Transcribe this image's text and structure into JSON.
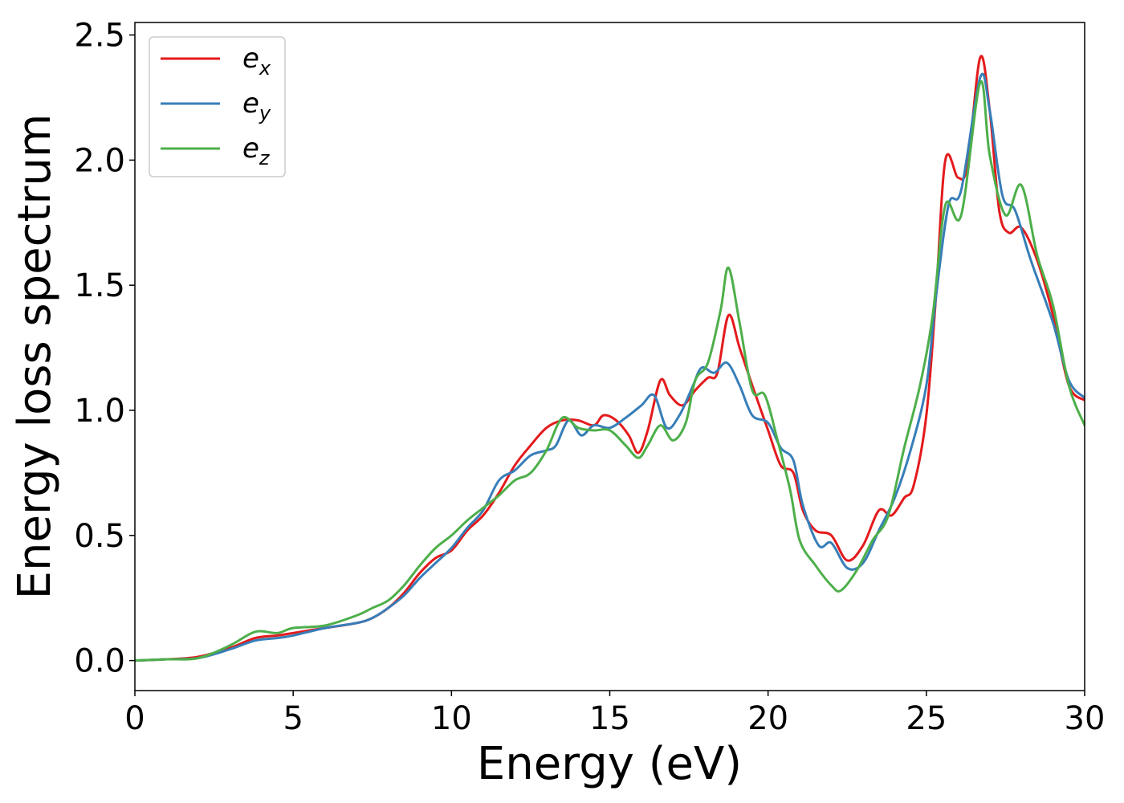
{
  "chart_data": {
    "type": "line",
    "xlabel": "Energy (eV)",
    "ylabel": "Energy loss spectrum",
    "xlim": [
      0,
      30
    ],
    "ylim": [
      -0.12,
      2.55
    ],
    "xticks": [
      0,
      5,
      10,
      15,
      20,
      25,
      30
    ],
    "xtick_labels": [
      "0",
      "5",
      "10",
      "15",
      "20",
      "25",
      "30"
    ],
    "yticks": [
      0.0,
      0.5,
      1.0,
      1.5,
      2.0,
      2.5
    ],
    "ytick_labels": [
      "0.0",
      "0.5",
      "1.0",
      "1.5",
      "2.0",
      "2.5"
    ],
    "grid": false,
    "legend_position": "top-left",
    "series": [
      {
        "name": "e",
        "subscript": "x",
        "color": "#e41a1c",
        "points": [
          [
            0,
            0
          ],
          [
            1,
            0.005
          ],
          [
            2,
            0.015
          ],
          [
            3,
            0.05
          ],
          [
            3.8,
            0.09
          ],
          [
            4.5,
            0.1
          ],
          [
            5,
            0.11
          ],
          [
            6,
            0.13
          ],
          [
            7,
            0.15
          ],
          [
            7.5,
            0.17
          ],
          [
            8,
            0.21
          ],
          [
            8.5,
            0.27
          ],
          [
            9,
            0.35
          ],
          [
            9.5,
            0.41
          ],
          [
            10,
            0.44
          ],
          [
            10.5,
            0.52
          ],
          [
            11,
            0.58
          ],
          [
            11.5,
            0.67
          ],
          [
            12,
            0.78
          ],
          [
            12.5,
            0.86
          ],
          [
            13,
            0.93
          ],
          [
            13.5,
            0.96
          ],
          [
            14,
            0.96
          ],
          [
            14.5,
            0.94
          ],
          [
            14.8,
            0.98
          ],
          [
            15.2,
            0.96
          ],
          [
            15.6,
            0.9
          ],
          [
            15.9,
            0.83
          ],
          [
            16.2,
            0.92
          ],
          [
            16.6,
            1.12
          ],
          [
            16.9,
            1.06
          ],
          [
            17.3,
            1.02
          ],
          [
            17.7,
            1.08
          ],
          [
            18.1,
            1.13
          ],
          [
            18.4,
            1.15
          ],
          [
            18.75,
            1.38
          ],
          [
            19.1,
            1.25
          ],
          [
            19.5,
            1.1
          ],
          [
            20,
            0.92
          ],
          [
            20.4,
            0.78
          ],
          [
            20.8,
            0.75
          ],
          [
            21.1,
            0.6
          ],
          [
            21.5,
            0.52
          ],
          [
            22,
            0.5
          ],
          [
            22.5,
            0.4
          ],
          [
            23,
            0.46
          ],
          [
            23.5,
            0.6
          ],
          [
            23.9,
            0.58
          ],
          [
            24.3,
            0.65
          ],
          [
            24.6,
            0.7
          ],
          [
            25,
            0.98
          ],
          [
            25.3,
            1.45
          ],
          [
            25.6,
            2.0
          ],
          [
            26,
            1.93
          ],
          [
            26.3,
            1.98
          ],
          [
            26.7,
            2.41
          ],
          [
            27,
            2.2
          ],
          [
            27.3,
            1.8
          ],
          [
            27.6,
            1.71
          ],
          [
            28,
            1.73
          ],
          [
            28.5,
            1.6
          ],
          [
            29,
            1.38
          ],
          [
            29.5,
            1.1
          ],
          [
            30,
            1.04
          ]
        ]
      },
      {
        "name": "e",
        "subscript": "y",
        "color": "#377eb8",
        "points": [
          [
            0,
            0
          ],
          [
            1,
            0.005
          ],
          [
            2,
            0.01
          ],
          [
            3,
            0.045
          ],
          [
            3.8,
            0.08
          ],
          [
            4.5,
            0.09
          ],
          [
            5,
            0.1
          ],
          [
            6,
            0.13
          ],
          [
            7,
            0.15
          ],
          [
            7.5,
            0.17
          ],
          [
            8,
            0.21
          ],
          [
            8.5,
            0.26
          ],
          [
            9,
            0.33
          ],
          [
            9.5,
            0.39
          ],
          [
            10,
            0.45
          ],
          [
            10.5,
            0.53
          ],
          [
            11,
            0.6
          ],
          [
            11.5,
            0.72
          ],
          [
            12,
            0.76
          ],
          [
            12.5,
            0.82
          ],
          [
            13,
            0.84
          ],
          [
            13.3,
            0.86
          ],
          [
            13.7,
            0.96
          ],
          [
            14.1,
            0.9
          ],
          [
            14.5,
            0.94
          ],
          [
            15,
            0.93
          ],
          [
            15.5,
            0.97
          ],
          [
            16,
            1.02
          ],
          [
            16.4,
            1.06
          ],
          [
            16.8,
            0.93
          ],
          [
            17.2,
            0.98
          ],
          [
            17.6,
            1.09
          ],
          [
            17.9,
            1.17
          ],
          [
            18.3,
            1.15
          ],
          [
            18.7,
            1.19
          ],
          [
            19.1,
            1.1
          ],
          [
            19.5,
            0.98
          ],
          [
            20,
            0.95
          ],
          [
            20.4,
            0.85
          ],
          [
            20.8,
            0.8
          ],
          [
            21.1,
            0.62
          ],
          [
            21.6,
            0.46
          ],
          [
            22,
            0.47
          ],
          [
            22.5,
            0.37
          ],
          [
            23,
            0.39
          ],
          [
            23.5,
            0.52
          ],
          [
            24,
            0.65
          ],
          [
            24.5,
            0.84
          ],
          [
            25,
            1.1
          ],
          [
            25.3,
            1.45
          ],
          [
            25.7,
            1.82
          ],
          [
            26.1,
            1.88
          ],
          [
            26.7,
            2.33
          ],
          [
            27,
            2.2
          ],
          [
            27.4,
            1.86
          ],
          [
            27.8,
            1.8
          ],
          [
            28.3,
            1.6
          ],
          [
            29,
            1.35
          ],
          [
            29.5,
            1.12
          ],
          [
            30,
            1.05
          ]
        ]
      },
      {
        "name": "e",
        "subscript": "z",
        "color": "#4daf4a",
        "points": [
          [
            0,
            0
          ],
          [
            1,
            0.005
          ],
          [
            2,
            0.01
          ],
          [
            3,
            0.06
          ],
          [
            3.8,
            0.115
          ],
          [
            4.5,
            0.11
          ],
          [
            5,
            0.13
          ],
          [
            6,
            0.14
          ],
          [
            7,
            0.18
          ],
          [
            7.5,
            0.21
          ],
          [
            8,
            0.24
          ],
          [
            8.5,
            0.3
          ],
          [
            9,
            0.38
          ],
          [
            9.5,
            0.45
          ],
          [
            10,
            0.5
          ],
          [
            10.5,
            0.56
          ],
          [
            11,
            0.61
          ],
          [
            11.5,
            0.66
          ],
          [
            12,
            0.72
          ],
          [
            12.5,
            0.75
          ],
          [
            13,
            0.84
          ],
          [
            13.5,
            0.97
          ],
          [
            14,
            0.93
          ],
          [
            14.5,
            0.92
          ],
          [
            15,
            0.92
          ],
          [
            15.5,
            0.86
          ],
          [
            15.9,
            0.81
          ],
          [
            16.2,
            0.86
          ],
          [
            16.6,
            0.94
          ],
          [
            17,
            0.88
          ],
          [
            17.4,
            0.95
          ],
          [
            17.7,
            1.12
          ],
          [
            18.1,
            1.19
          ],
          [
            18.5,
            1.4
          ],
          [
            18.75,
            1.57
          ],
          [
            19.1,
            1.35
          ],
          [
            19.5,
            1.08
          ],
          [
            19.9,
            1.06
          ],
          [
            20.3,
            0.88
          ],
          [
            20.7,
            0.68
          ],
          [
            21,
            0.48
          ],
          [
            21.5,
            0.38
          ],
          [
            22,
            0.3
          ],
          [
            22.3,
            0.28
          ],
          [
            22.8,
            0.36
          ],
          [
            23.3,
            0.48
          ],
          [
            23.8,
            0.58
          ],
          [
            24.3,
            0.85
          ],
          [
            24.8,
            1.1
          ],
          [
            25.2,
            1.38
          ],
          [
            25.6,
            1.82
          ],
          [
            26.1,
            1.78
          ],
          [
            26.7,
            2.31
          ],
          [
            27,
            2.02
          ],
          [
            27.5,
            1.78
          ],
          [
            28,
            1.9
          ],
          [
            28.5,
            1.62
          ],
          [
            29,
            1.42
          ],
          [
            29.5,
            1.1
          ],
          [
            30,
            0.94
          ]
        ]
      }
    ]
  }
}
